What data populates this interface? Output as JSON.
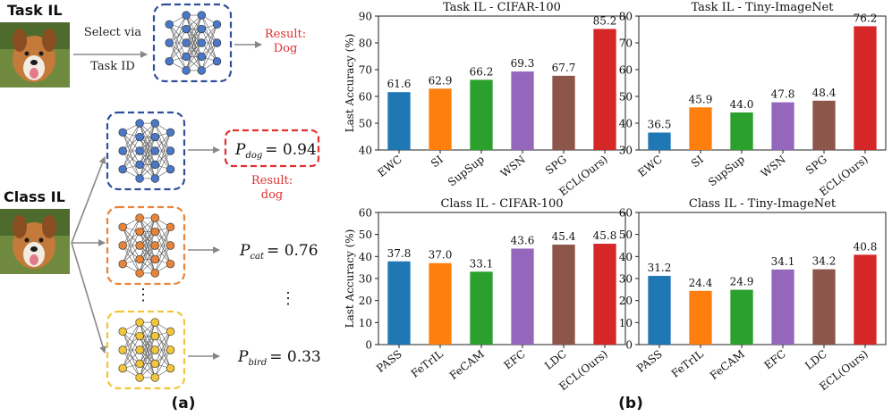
{
  "panel_a": {
    "caption": "(a)",
    "task_il": {
      "title": "Task IL",
      "select_line1": "Select via",
      "select_line2": "Task ID",
      "result_line1": "Result:",
      "result_line2": "Dog"
    },
    "class_il": {
      "title": "Class IL",
      "result_line1": "Result:",
      "result_line2": "dog",
      "vertical_dots": "⋮",
      "outputs": [
        {
          "p": "P",
          "sub": "dog",
          "eq": "= 0.94",
          "color": "#e03030"
        },
        {
          "p": "P",
          "sub": "cat",
          "eq": "= 0.76",
          "color": "#222222"
        },
        {
          "p": "P",
          "sub": "bird",
          "eq": "= 0.33",
          "color": "#222222"
        }
      ]
    },
    "colors": {
      "task_net": "#2f4f9a",
      "net_blue": "#4a78c8",
      "net_orange": "#e8843a",
      "net_yellow": "#f3c63a",
      "result_red": "#e03030",
      "arrow": "#888888"
    }
  },
  "panel_b": {
    "caption": "(b)"
  },
  "chart_data": [
    {
      "type": "bar",
      "title": "Task IL - CIFAR-100",
      "ylabel": "Last Accuracy (%)",
      "ylim": [
        40,
        90
      ],
      "yticks": [
        40,
        50,
        60,
        70,
        80,
        90
      ],
      "categories": [
        "EWC",
        "SI",
        "SupSup",
        "WSN",
        "SPG",
        "ECL(Ours)"
      ],
      "values": [
        61.6,
        62.9,
        66.2,
        69.3,
        67.7,
        85.2
      ],
      "labels": [
        "61.6",
        "62.9",
        "66.2",
        "69.3",
        "67.7",
        "85.2"
      ],
      "colors": [
        "#1f77b4",
        "#ff7f0e",
        "#2ca02c",
        "#9467bd",
        "#8c564b",
        "#d62728"
      ]
    },
    {
      "type": "bar",
      "title": "Task IL - Tiny-ImageNet",
      "ylabel": "",
      "ylim": [
        30,
        80
      ],
      "yticks": [
        30,
        40,
        50,
        60,
        70,
        80
      ],
      "categories": [
        "EWC",
        "SI",
        "SupSup",
        "WSN",
        "SPG",
        "ECL(Ours)"
      ],
      "values": [
        36.5,
        45.9,
        44.0,
        47.8,
        48.4,
        76.2
      ],
      "labels": [
        "36.5",
        "45.9",
        "44.0",
        "47.8",
        "48.4",
        "76.2"
      ],
      "colors": [
        "#1f77b4",
        "#ff7f0e",
        "#2ca02c",
        "#9467bd",
        "#8c564b",
        "#d62728"
      ]
    },
    {
      "type": "bar",
      "title": "Class IL - CIFAR-100",
      "ylabel": "Last Accuracy (%)",
      "ylim": [
        0,
        60
      ],
      "yticks": [
        0,
        10,
        20,
        30,
        40,
        50,
        60
      ],
      "categories": [
        "PASS",
        "FeTrIL",
        "FeCAM",
        "EFC",
        "LDC",
        "ECL(Ours)"
      ],
      "values": [
        37.8,
        37.0,
        33.1,
        43.6,
        45.4,
        45.8
      ],
      "labels": [
        "37.8",
        "37.0",
        "33.1",
        "43.6",
        "45.4",
        "45.8"
      ],
      "colors": [
        "#1f77b4",
        "#ff7f0e",
        "#2ca02c",
        "#9467bd",
        "#8c564b",
        "#d62728"
      ]
    },
    {
      "type": "bar",
      "title": "Class IL - Tiny-ImageNet",
      "ylabel": "",
      "ylim": [
        0,
        60
      ],
      "yticks": [
        0,
        10,
        20,
        30,
        40,
        50,
        60
      ],
      "categories": [
        "PASS",
        "FeTrIL",
        "FeCAM",
        "EFC",
        "LDC",
        "ECL(Ours)"
      ],
      "values": [
        31.2,
        24.4,
        24.9,
        34.1,
        34.2,
        40.8
      ],
      "labels": [
        "31.2",
        "24.4",
        "24.9",
        "34.1",
        "34.2",
        "40.8"
      ],
      "colors": [
        "#1f77b4",
        "#ff7f0e",
        "#2ca02c",
        "#9467bd",
        "#8c564b",
        "#d62728"
      ]
    }
  ]
}
